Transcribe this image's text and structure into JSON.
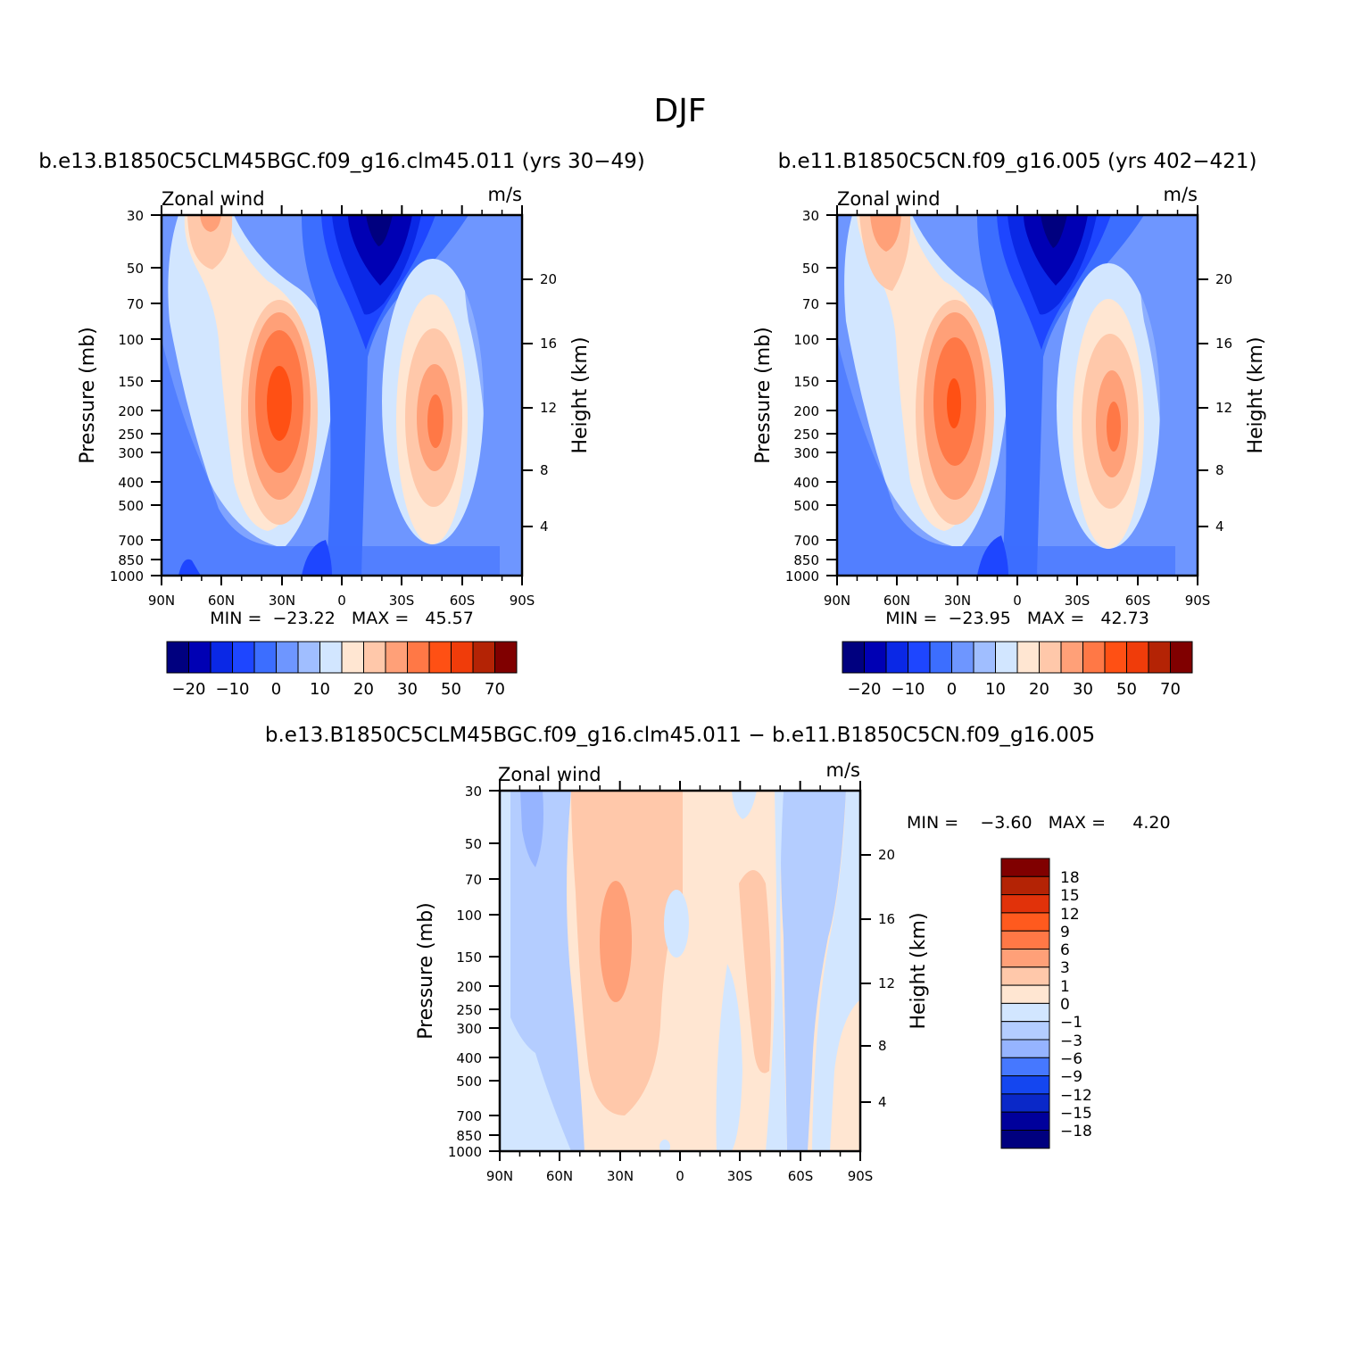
{
  "main_title": "DJF",
  "chart_data": [
    {
      "type": "heatmap",
      "title": "b.e13.B1850C5CLM45BGC.f09_g16.clm45.011 (yrs 30−49)",
      "left_label": "Zonal wind",
      "right_label": "m/s",
      "ylabel": "Pressure (mb)",
      "ylabel_right": "Height (km)",
      "x_ticks": [
        "90N",
        "60N",
        "30N",
        "0",
        "30S",
        "60S",
        "90S"
      ],
      "y_ticks": [
        "30",
        "50",
        "70",
        "100",
        "150",
        "200",
        "250",
        "300",
        "400",
        "500",
        "700",
        "850",
        "1000"
      ],
      "y_right_ticks": [
        "20",
        "16",
        "12",
        "8",
        "4"
      ],
      "min_max": "MIN =  −23.22   MAX =   45.57",
      "jets": [
        {
          "lat": 30,
          "pressure_mb": 200,
          "value": 45.57
        },
        {
          "lat": -47,
          "pressure_mb": 220,
          "value": 38
        }
      ],
      "stratospheric_min": {
        "lat": -15,
        "pressure_mb": 30,
        "value": -23.22
      },
      "colorbar_labels": [
        "−20",
        "−10",
        "0",
        "10",
        "20",
        "30",
        "50",
        "70"
      ],
      "colors": [
        "#00007f",
        "#0000b4",
        "#0a28e6",
        "#1e46ff",
        "#3c6eff",
        "#6e96ff",
        "#a0beff",
        "#d2e6ff",
        "#ffe6d2",
        "#ffc8aa",
        "#ffa078",
        "#ff7846",
        "#ff5014",
        "#f03c0a",
        "#b42305",
        "#800000"
      ]
    },
    {
      "type": "heatmap",
      "title": "b.e11.B1850C5CN.f09_g16.005 (yrs 402−421)",
      "left_label": "Zonal wind",
      "right_label": "m/s",
      "ylabel": "Pressure (mb)",
      "ylabel_right": "Height (km)",
      "x_ticks": [
        "90N",
        "60N",
        "30N",
        "0",
        "30S",
        "60S",
        "90S"
      ],
      "y_ticks": [
        "30",
        "50",
        "70",
        "100",
        "150",
        "200",
        "250",
        "300",
        "400",
        "500",
        "700",
        "850",
        "1000"
      ],
      "y_right_ticks": [
        "20",
        "16",
        "12",
        "8",
        "4"
      ],
      "min_max": "MIN =  −23.95   MAX =   42.73",
      "jets": [
        {
          "lat": 30,
          "pressure_mb": 200,
          "value": 42.73
        },
        {
          "lat": -48,
          "pressure_mb": 230,
          "value": 36
        }
      ],
      "stratospheric_min": {
        "lat": -15,
        "pressure_mb": 30,
        "value": -23.95
      },
      "colorbar_labels": [
        "−20",
        "−10",
        "0",
        "10",
        "20",
        "30",
        "50",
        "70"
      ],
      "colors": [
        "#00007f",
        "#0000b4",
        "#0a28e6",
        "#1e46ff",
        "#3c6eff",
        "#6e96ff",
        "#a0beff",
        "#d2e6ff",
        "#ffe6d2",
        "#ffc8aa",
        "#ffa078",
        "#ff7846",
        "#ff5014",
        "#f03c0a",
        "#b42305",
        "#800000"
      ]
    },
    {
      "type": "heatmap",
      "title": "b.e13.B1850C5CLM45BGC.f09_g16.clm45.011 − b.e11.B1850C5CN.f09_g16.005",
      "left_label": "Zonal wind",
      "right_label": "m/s",
      "ylabel": "Pressure (mb)",
      "ylabel_right": "Height (km)",
      "x_ticks": [
        "90N",
        "60N",
        "30N",
        "0",
        "30S",
        "60S",
        "90S"
      ],
      "y_ticks": [
        "30",
        "50",
        "70",
        "100",
        "150",
        "200",
        "250",
        "300",
        "400",
        "500",
        "700",
        "850",
        "1000"
      ],
      "y_right_ticks": [
        "20",
        "16",
        "12",
        "8",
        "4"
      ],
      "min_max": "MIN =    −3.60   MAX =     4.20",
      "colorbar_labels": [
        "18",
        "15",
        "12",
        "9",
        "6",
        "3",
        "1",
        "0",
        "−1",
        "−3",
        "−6",
        "−9",
        "−12",
        "−15",
        "−18"
      ],
      "colors": [
        "#800000",
        "#b42305",
        "#e1320a",
        "#ff5a1e",
        "#ff7846",
        "#ffa078",
        "#ffc8aa",
        "#ffe6d2",
        "#d2e6ff",
        "#b4cdff",
        "#96b4ff",
        "#4678ff",
        "#1446f0",
        "#0a28c8",
        "#00009b",
        "#00007f"
      ]
    }
  ]
}
